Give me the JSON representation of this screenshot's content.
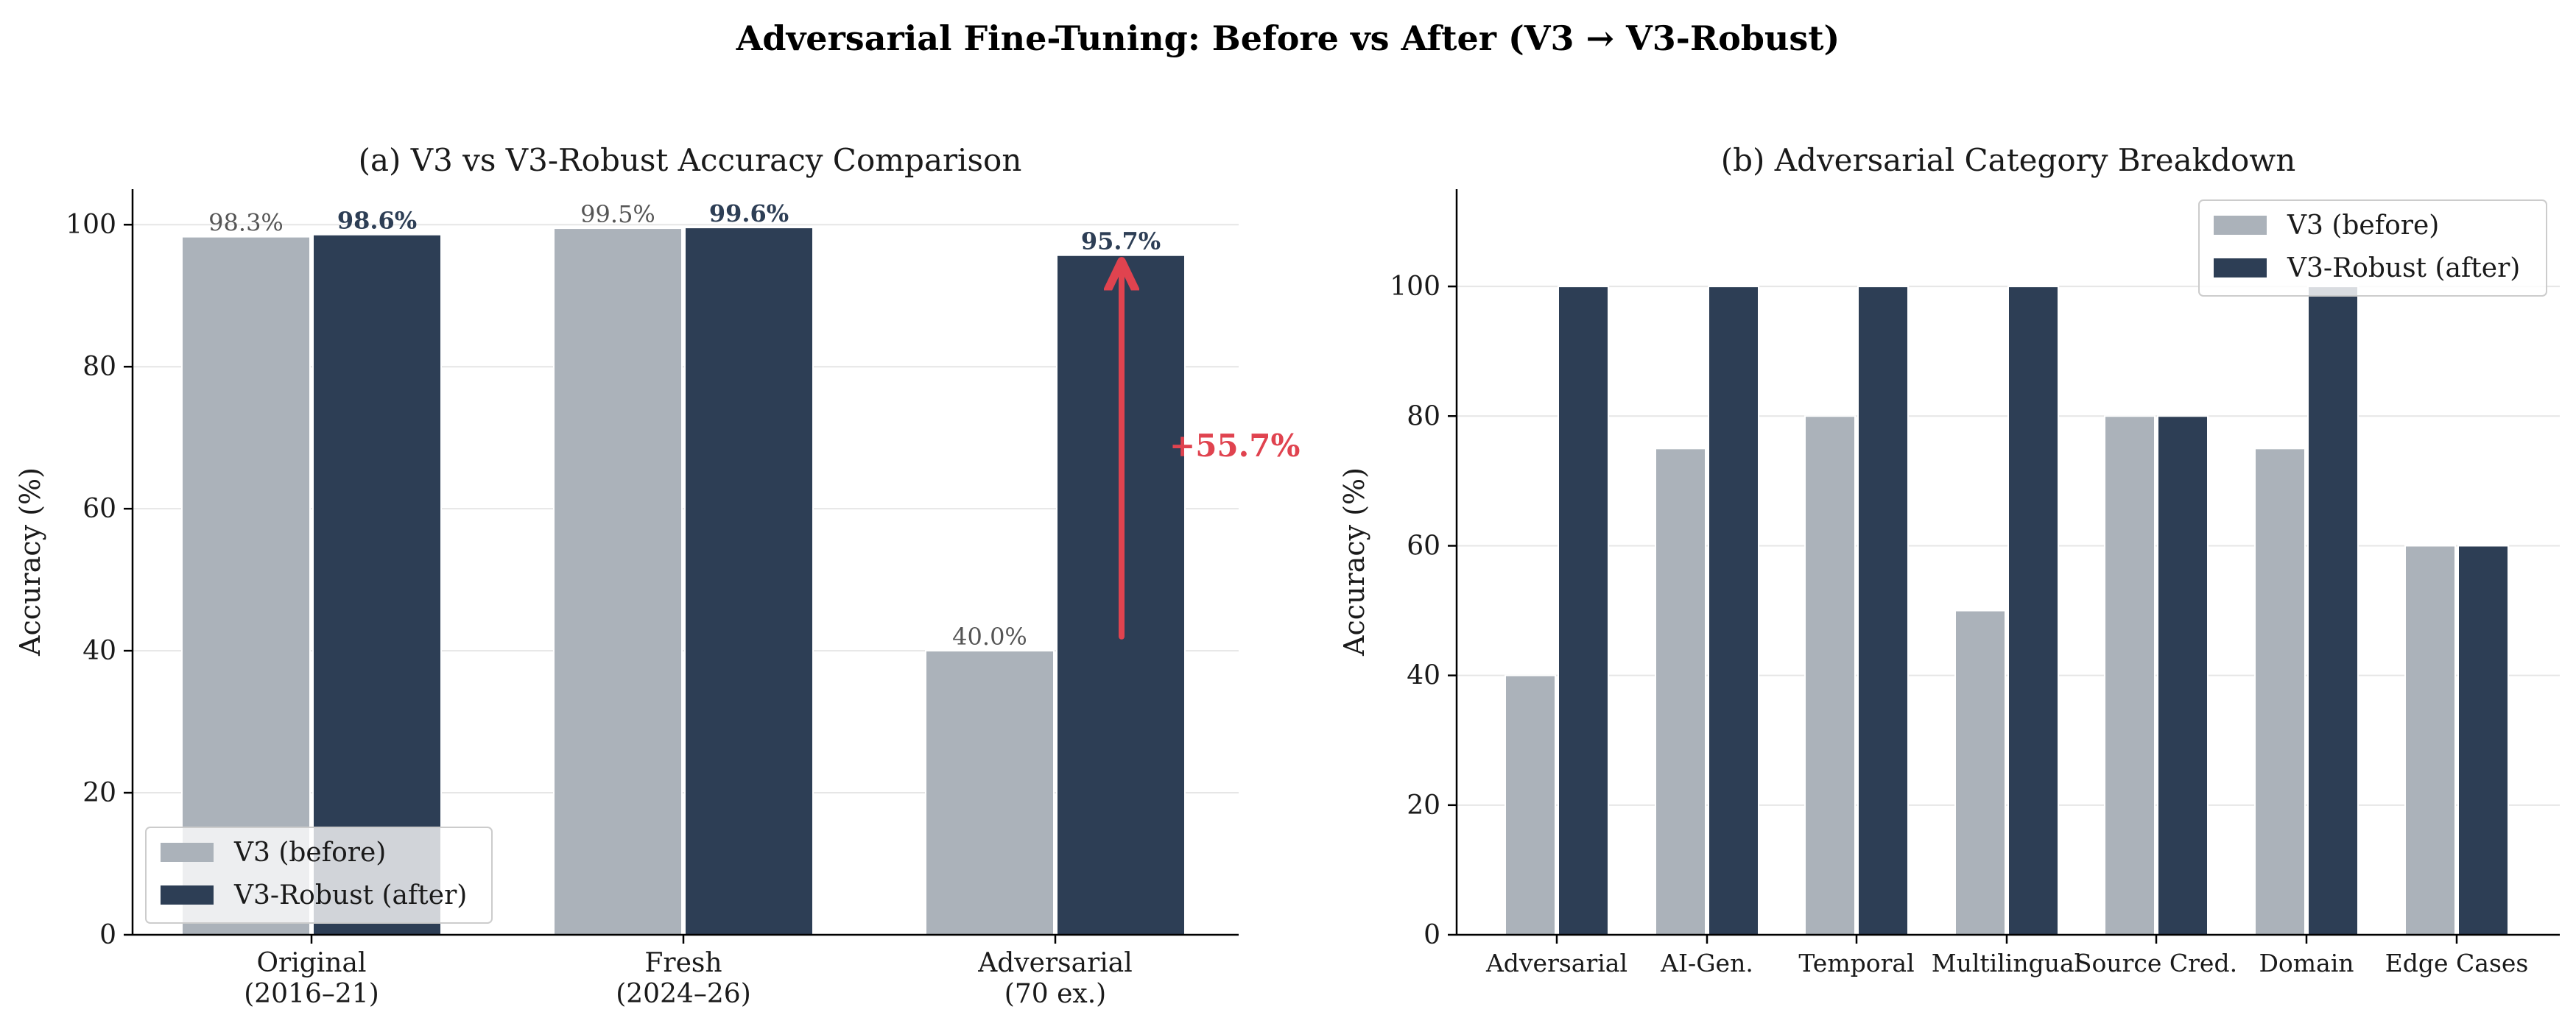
{
  "figure": {
    "suptitle": "Adversarial Fine-Tuning: Before vs After (V3 → V3-Robust)"
  },
  "colors": {
    "before": "#abb2ba",
    "after": "#2d3e55",
    "annotation": "#e0434f",
    "grid": "#e6e6e6"
  },
  "chart_data": [
    {
      "type": "bar",
      "title": "(a) V3 vs V3-Robust Accuracy Comparison",
      "ylabel": "Accuracy (%)",
      "ylim": [
        0,
        105
      ],
      "yticks": [
        0,
        20,
        40,
        60,
        80,
        100
      ],
      "categories": [
        "Original\n(2016–21)",
        "Fresh\n(2024–26)",
        "Adversarial\n(70 ex.)"
      ],
      "series": [
        {
          "name": "V3 (before)",
          "values": [
            98.3,
            99.5,
            40.0
          ],
          "labels": [
            "98.3%",
            "99.5%",
            "40.0%"
          ]
        },
        {
          "name": "V3-Robust (after)",
          "values": [
            98.6,
            99.6,
            95.7
          ],
          "labels": [
            "98.6%",
            "99.6%",
            "95.7%"
          ]
        }
      ],
      "annotation": {
        "text": "+55.7%",
        "category_index": 2,
        "from": 42,
        "to": 95.7
      },
      "legend": "lower-left",
      "grid": "y"
    },
    {
      "type": "bar",
      "title": "(b) Adversarial Category Breakdown",
      "ylabel": "Accuracy (%)",
      "ylim": [
        0,
        115
      ],
      "yticks": [
        0,
        20,
        40,
        60,
        80,
        100
      ],
      "categories": [
        "Adversarial",
        "AI-Gen.",
        "Temporal",
        "Multilingual",
        "Source Cred.",
        "Domain",
        "Edge Cases"
      ],
      "series": [
        {
          "name": "V3 (before)",
          "values": [
            40,
            75,
            80,
            50,
            80,
            75,
            60
          ]
        },
        {
          "name": "V3-Robust (after)",
          "values": [
            100,
            100,
            100,
            100,
            80,
            100,
            60
          ]
        }
      ],
      "legend": "upper-right",
      "grid": "y"
    }
  ]
}
